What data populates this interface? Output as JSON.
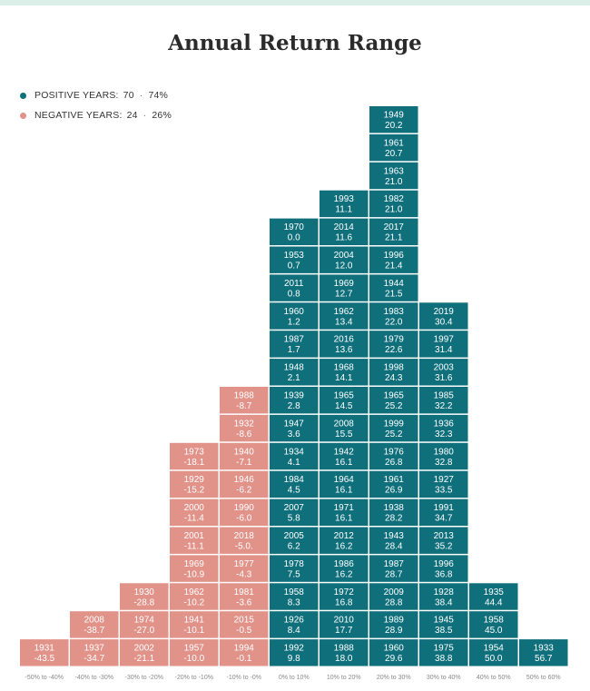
{
  "title": "Annual Return Range",
  "legend": {
    "positive": {
      "label": "POSITIVE YEARS:",
      "count": "70",
      "sep": "·",
      "percent": "74%",
      "color": "#0f6f7b"
    },
    "negative": {
      "label": "NEGATIVE YEARS:",
      "count": "24",
      "sep": "·",
      "percent": "26%",
      "color": "#e19289"
    }
  },
  "chart_data": {
    "type": "histogram",
    "title": "Annual Return Range",
    "categories": [
      "-50% to -40%",
      "-40% to -30%",
      "-30% to -20%",
      "-20% to -10%",
      "-10% to -0%",
      "0% to 10%",
      "10% to 20%",
      "20% to 30%",
      "30% to 40%",
      "40% to 50%",
      "50% to 60%"
    ],
    "colors": {
      "positive": "#0f6f7b",
      "negative": "#e19289"
    },
    "bins": [
      {
        "sign": "negative",
        "cells": [
          [
            "1931",
            "-43.5"
          ]
        ]
      },
      {
        "sign": "negative",
        "cells": [
          [
            "1937",
            "-34.7"
          ],
          [
            "2008",
            "-38.7"
          ]
        ]
      },
      {
        "sign": "negative",
        "cells": [
          [
            "2002",
            "-21.1"
          ],
          [
            "1974",
            "-27.0"
          ],
          [
            "1930",
            "-28.8"
          ]
        ]
      },
      {
        "sign": "negative",
        "cells": [
          [
            "1957",
            "-10.0"
          ],
          [
            "1941",
            "-10.1"
          ],
          [
            "1962",
            "-10.2"
          ],
          [
            "1969",
            "-10.9"
          ],
          [
            "2001",
            "-11.1"
          ],
          [
            "2000",
            "-11.4"
          ],
          [
            "1929",
            "-15.2"
          ],
          [
            "1973",
            "-18.1"
          ]
        ]
      },
      {
        "sign": "negative",
        "cells": [
          [
            "1994",
            "-0.1"
          ],
          [
            "2015",
            "-0.5"
          ],
          [
            "1981",
            "-3.6"
          ],
          [
            "1977",
            "-4.3"
          ],
          [
            "2018",
            "-5.0."
          ],
          [
            "1990",
            "-6.0"
          ],
          [
            "1946",
            "-6.2"
          ],
          [
            "1940",
            "-7.1"
          ],
          [
            "1932",
            "-8.6"
          ],
          [
            "1988",
            "-8.7"
          ]
        ]
      },
      {
        "sign": "positive",
        "cells": [
          [
            "1992",
            "9.8"
          ],
          [
            "1926",
            "8.4"
          ],
          [
            "1958",
            "8.3"
          ],
          [
            "1978",
            "7.5"
          ],
          [
            "2005",
            "6.2"
          ],
          [
            "2007",
            "5.8"
          ],
          [
            "1984",
            "4.5"
          ],
          [
            "1934",
            "4.1"
          ],
          [
            "1947",
            "3.6"
          ],
          [
            "1939",
            "2.8"
          ],
          [
            "1948",
            "2.1"
          ],
          [
            "1987",
            "1.7"
          ],
          [
            "1960",
            "1.2"
          ],
          [
            "2011",
            "0.8"
          ],
          [
            "1953",
            "0.7"
          ],
          [
            "1970",
            "0.0"
          ]
        ]
      },
      {
        "sign": "positive",
        "cells": [
          [
            "1988",
            "18.0"
          ],
          [
            "2010",
            "17.7"
          ],
          [
            "1972",
            "16.8"
          ],
          [
            "1986",
            "16.2"
          ],
          [
            "2012",
            "16.2"
          ],
          [
            "1971",
            "16.1"
          ],
          [
            "1964",
            "16.1"
          ],
          [
            "1942",
            "16.1"
          ],
          [
            "2008",
            "15.5"
          ],
          [
            "1965",
            "14.5"
          ],
          [
            "1968",
            "14.1"
          ],
          [
            "2016",
            "13.6"
          ],
          [
            "1962",
            "13.4"
          ],
          [
            "1969",
            "12.7"
          ],
          [
            "2004",
            "12.0"
          ],
          [
            "2014",
            "11.6"
          ],
          [
            "1993",
            "11.1"
          ]
        ]
      },
      {
        "sign": "positive",
        "cells": [
          [
            "1960",
            "29.6"
          ],
          [
            "1989",
            "28.9"
          ],
          [
            "2009",
            "28.8"
          ],
          [
            "1987",
            "28.7"
          ],
          [
            "1943",
            "28.4"
          ],
          [
            "1938",
            "28.2"
          ],
          [
            "1961",
            "26.9"
          ],
          [
            "1976",
            "26.8"
          ],
          [
            "1999",
            "25.2"
          ],
          [
            "1965",
            "25.2"
          ],
          [
            "1998",
            "24.3"
          ],
          [
            "1979",
            "22.6"
          ],
          [
            "1983",
            "22.0"
          ],
          [
            "1944",
            "21.5"
          ],
          [
            "1996",
            "21.4"
          ],
          [
            "2017",
            "21.1"
          ],
          [
            "1982",
            "21.0"
          ],
          [
            "1963",
            "21.0"
          ],
          [
            "1961",
            "20.7"
          ],
          [
            "1949",
            "20.2"
          ]
        ]
      },
      {
        "sign": "positive",
        "cells": [
          [
            "1975",
            "38.8"
          ],
          [
            "1945",
            "38.5"
          ],
          [
            "1928",
            "38.4"
          ],
          [
            "1996",
            "36.8"
          ],
          [
            "2013",
            "35.2"
          ],
          [
            "1991",
            "34.7"
          ],
          [
            "1927",
            "33.5"
          ],
          [
            "1980",
            "32.8"
          ],
          [
            "1936",
            "32.3"
          ],
          [
            "1985",
            "32.2"
          ],
          [
            "2003",
            "31.6"
          ],
          [
            "1997",
            "31.4"
          ],
          [
            "2019",
            "30.4"
          ]
        ]
      },
      {
        "sign": "positive",
        "cells": [
          [
            "1954",
            "50.0"
          ],
          [
            "1958",
            "45.0"
          ],
          [
            "1935",
            "44.4"
          ]
        ]
      },
      {
        "sign": "positive",
        "cells": [
          [
            "1933",
            "56.7"
          ]
        ]
      }
    ]
  }
}
